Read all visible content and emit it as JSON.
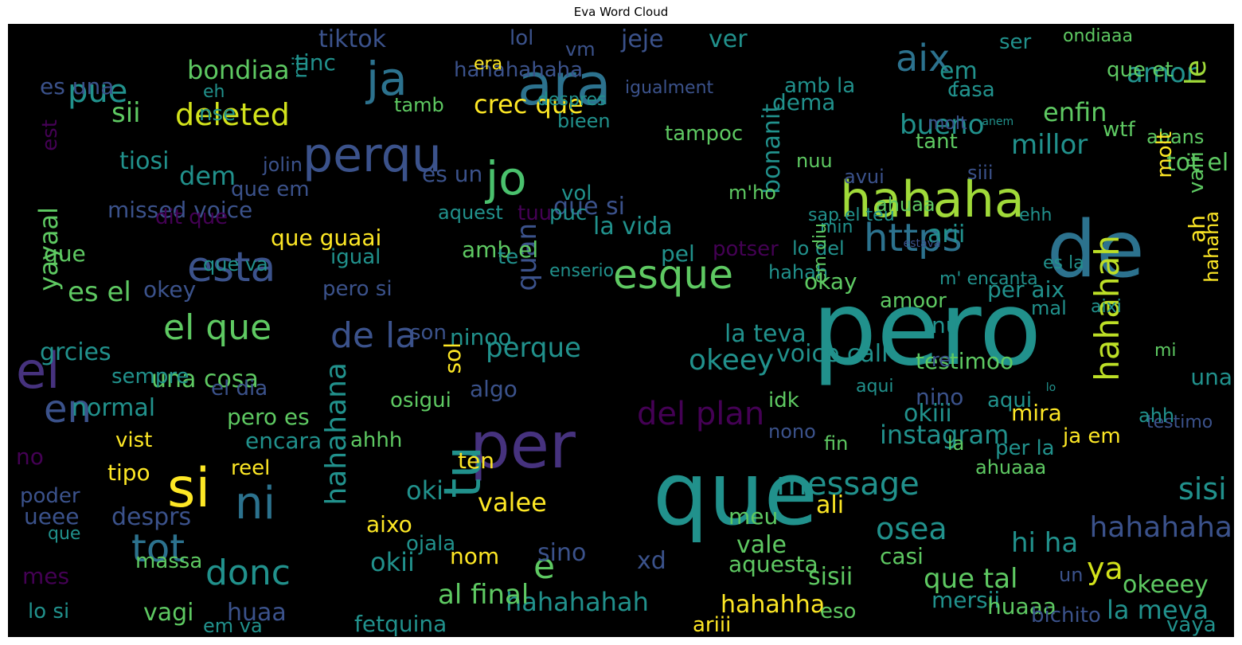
{
  "title": "Eva Word Cloud",
  "colors": {
    "background": "#000000",
    "palette": [
      "#440154",
      "#3b528b",
      "#21918c",
      "#5ec962",
      "#fde725"
    ]
  },
  "words": [
    {
      "text": "pero",
      "color": "#21918c"
    },
    {
      "text": "que",
      "color": "#21918c"
    },
    {
      "text": "de",
      "color": "#2c728e"
    },
    {
      "text": "per",
      "color": "#46327e"
    },
    {
      "text": "ara",
      "color": "#2c728e"
    },
    {
      "text": "hahaha",
      "color": "#a0da39"
    },
    {
      "text": "perqu",
      "color": "#3b528b"
    },
    {
      "text": "ja",
      "color": "#2c728e"
    },
    {
      "text": "jo",
      "color": "#4ac16d"
    },
    {
      "text": "tu",
      "color": "#21918c"
    },
    {
      "text": "si",
      "color": "#fde725"
    },
    {
      "text": "el",
      "color": "#46327e"
    },
    {
      "text": "esque",
      "color": "#5ec962"
    },
    {
      "text": "https",
      "color": "#2c728e"
    },
    {
      "text": "esta",
      "color": "#3b528b"
    },
    {
      "text": "aix",
      "color": "#2c728e"
    },
    {
      "text": "el que",
      "color": "#5ec962"
    },
    {
      "text": "de la",
      "color": "#3b528b"
    },
    {
      "text": "hahahana",
      "color": "#21918c"
    },
    {
      "text": "hahahah",
      "color": "#bddf26"
    },
    {
      "text": "deleted",
      "color": "#d2e21b"
    },
    {
      "text": "message",
      "color": "#21918c"
    },
    {
      "text": "tot",
      "color": "#2c728e"
    },
    {
      "text": "ni",
      "color": "#2c728e"
    },
    {
      "text": "donc",
      "color": "#21918c"
    },
    {
      "text": "en",
      "color": "#3b528b"
    },
    {
      "text": "del plan",
      "color": "#440154"
    },
    {
      "text": "instagram",
      "color": "#21918c"
    },
    {
      "text": "voice call",
      "color": "#21918c"
    },
    {
      "text": "okeey",
      "color": "#21918c"
    },
    {
      "text": "perque",
      "color": "#21918c"
    },
    {
      "text": "quan",
      "color": "#3b528b"
    },
    {
      "text": "pue",
      "color": "#21918c"
    },
    {
      "text": "crec que",
      "color": "#fde725"
    },
    {
      "text": "bondiaa",
      "color": "#5ec962"
    },
    {
      "text": "tiktok",
      "color": "#3b528b"
    },
    {
      "text": "jeje",
      "color": "#3b528b"
    },
    {
      "text": "ver",
      "color": "#21918c"
    },
    {
      "text": "bueno",
      "color": "#21918c"
    },
    {
      "text": "amor",
      "color": "#21918c"
    },
    {
      "text": "le",
      "color": "#a0da39"
    },
    {
      "text": "enfin",
      "color": "#5ec962"
    },
    {
      "text": "millor",
      "color": "#21918c"
    },
    {
      "text": "bonanit",
      "color": "#21918c"
    },
    {
      "text": "testimoo",
      "color": "#5ec962"
    },
    {
      "text": "osea",
      "color": "#21918c"
    },
    {
      "text": "hahahaha",
      "color": "#3b528b"
    },
    {
      "text": "ya",
      "color": "#d2e21b"
    },
    {
      "text": "sisi",
      "color": "#21918c"
    },
    {
      "text": "una",
      "color": "#21918c"
    },
    {
      "text": "la meva",
      "color": "#21918c"
    },
    {
      "text": "okeeey",
      "color": "#5ec962"
    },
    {
      "text": "que tal",
      "color": "#5ec962"
    },
    {
      "text": "hahahahah",
      "color": "#21918c"
    },
    {
      "text": "aqui",
      "color": "#21918c"
    },
    {
      "text": "arii",
      "color": "#21918c"
    },
    {
      "text": "una cosa",
      "color": "#5ec962"
    },
    {
      "text": "que guaai",
      "color": "#fde725"
    },
    {
      "text": "la vida",
      "color": "#21918c"
    },
    {
      "text": "amb el",
      "color": "#5ec962"
    },
    {
      "text": "valee",
      "color": "#fde725"
    },
    {
      "text": "aixo",
      "color": "#fde725"
    },
    {
      "text": "sisii",
      "color": "#5ec962"
    },
    {
      "text": "vale",
      "color": "#5ec962"
    },
    {
      "text": "la teva",
      "color": "#21918c"
    },
    {
      "text": "missed voice",
      "color": "#3b528b"
    },
    {
      "text": "yayaal",
      "color": "#5ec962"
    },
    {
      "text": "sii",
      "color": "#5ec962"
    },
    {
      "text": "tiosi",
      "color": "#21918c"
    },
    {
      "text": "dem",
      "color": "#21918c"
    },
    {
      "text": "es el",
      "color": "#5ec962"
    },
    {
      "text": "desprs",
      "color": "#3b528b"
    },
    {
      "text": "massa",
      "color": "#5ec962"
    },
    {
      "text": "vagi",
      "color": "#5ec962"
    },
    {
      "text": "huaa",
      "color": "#3b528b"
    },
    {
      "text": "em va",
      "color": "#21918c"
    },
    {
      "text": "fetquina",
      "color": "#21918c"
    },
    {
      "text": "al final",
      "color": "#5ec962"
    },
    {
      "text": "e",
      "color": "#5ec962"
    },
    {
      "text": "aqui",
      "color": "#21918c"
    },
    {
      "text": "ojala",
      "color": "#21918c"
    },
    {
      "text": "okii",
      "color": "#21918c"
    },
    {
      "text": "nom",
      "color": "#fde725"
    },
    {
      "text": "xd",
      "color": "#3b528b"
    },
    {
      "text": "sino",
      "color": "#3b528b"
    },
    {
      "text": "hahahha",
      "color": "#fde725"
    },
    {
      "text": "ariii",
      "color": "#fde725"
    },
    {
      "text": "aquesta",
      "color": "#5ec962"
    },
    {
      "text": "casi",
      "color": "#5ec962"
    },
    {
      "text": "eso",
      "color": "#5ec962"
    },
    {
      "text": "mersii",
      "color": "#21918c"
    },
    {
      "text": "huaaa",
      "color": "#5ec962"
    },
    {
      "text": "hi ha",
      "color": "#21918c"
    },
    {
      "text": "un",
      "color": "#3b528b"
    },
    {
      "text": "vaya",
      "color": "#21918c"
    },
    {
      "text": "bichito",
      "color": "#3b528b"
    },
    {
      "text": "meu",
      "color": "#5ec962"
    },
    {
      "text": "ali",
      "color": "#fde725"
    },
    {
      "text": "oki",
      "color": "#21918c"
    },
    {
      "text": "ten",
      "color": "#fde725"
    },
    {
      "text": "ahhh",
      "color": "#5ec962"
    },
    {
      "text": "pero es",
      "color": "#5ec962"
    },
    {
      "text": "encara",
      "color": "#21918c"
    },
    {
      "text": "reel",
      "color": "#fde725"
    },
    {
      "text": "vist",
      "color": "#fde725"
    },
    {
      "text": "tipo",
      "color": "#fde725"
    },
    {
      "text": "normal",
      "color": "#21918c"
    },
    {
      "text": "sempre",
      "color": "#21918c"
    },
    {
      "text": "el dia",
      "color": "#3b528b"
    },
    {
      "text": "grcies",
      "color": "#21918c"
    },
    {
      "text": "okey",
      "color": "#3b528b"
    },
    {
      "text": "pero si",
      "color": "#3b528b"
    },
    {
      "text": "son",
      "color": "#3b528b"
    },
    {
      "text": "ninoo",
      "color": "#21918c"
    },
    {
      "text": "sol",
      "color": "#fde725"
    },
    {
      "text": "osigui",
      "color": "#5ec962"
    },
    {
      "text": "algo",
      "color": "#3b528b"
    },
    {
      "text": "igual",
      "color": "#21918c"
    },
    {
      "text": "te",
      "color": "#21918c"
    },
    {
      "text": "enserio",
      "color": "#21918c"
    },
    {
      "text": "pel",
      "color": "#21918c"
    },
    {
      "text": "potser",
      "color": "#440154"
    },
    {
      "text": "hahah",
      "color": "#21918c"
    },
    {
      "text": "okay",
      "color": "#5ec962"
    },
    {
      "text": "amoor",
      "color": "#5ec962"
    },
    {
      "text": "nu",
      "color": "#21918c"
    },
    {
      "text": "re",
      "color": "#3b528b"
    },
    {
      "text": "nono",
      "color": "#3b528b"
    },
    {
      "text": "okiii",
      "color": "#21918c"
    },
    {
      "text": "idk",
      "color": "#5ec962"
    },
    {
      "text": "nino",
      "color": "#3b528b"
    },
    {
      "text": "mira",
      "color": "#fde725"
    },
    {
      "text": "per la",
      "color": "#21918c"
    },
    {
      "text": "la",
      "color": "#5ec962"
    },
    {
      "text": "fin",
      "color": "#5ec962"
    },
    {
      "text": "testimo",
      "color": "#3b528b"
    },
    {
      "text": "ahh",
      "color": "#21918c"
    },
    {
      "text": "mi",
      "color": "#5ec962"
    },
    {
      "text": "es la",
      "color": "#21918c"
    },
    {
      "text": "mal",
      "color": "#21918c"
    },
    {
      "text": "aixi",
      "color": "#21918c"
    },
    {
      "text": "per aix",
      "color": "#21918c"
    },
    {
      "text": "m' encanta",
      "color": "#21918c"
    },
    {
      "text": "ehh",
      "color": "#21918c"
    },
    {
      "text": "siii",
      "color": "#3b528b"
    },
    {
      "text": "tant",
      "color": "#5ec962"
    },
    {
      "text": "wtf",
      "color": "#5ec962"
    },
    {
      "text": "abans",
      "color": "#5ec962"
    },
    {
      "text": "tot el",
      "color": "#5ec962"
    },
    {
      "text": "casa",
      "color": "#21918c"
    },
    {
      "text": "em",
      "color": "#21918c"
    },
    {
      "text": "fa",
      "color": "#21918c"
    },
    {
      "text": "ser",
      "color": "#21918c"
    },
    {
      "text": "ondiaaa",
      "color": "#5ec962"
    },
    {
      "text": "que et",
      "color": "#5ec962"
    },
    {
      "text": "igualment",
      "color": "#3b528b"
    },
    {
      "text": "hahahahaha",
      "color": "#3b528b"
    },
    {
      "text": "bieen",
      "color": "#21918c"
    },
    {
      "text": "tamb",
      "color": "#5ec962"
    },
    {
      "text": "tampoc",
      "color": "#5ec962"
    },
    {
      "text": "tinc",
      "color": "#21918c"
    },
    {
      "text": "lol",
      "color": "#3b528b"
    },
    {
      "text": "vm",
      "color": "#3b528b"
    },
    {
      "text": "era",
      "color": "#fde725"
    },
    {
      "text": "es una",
      "color": "#3b528b"
    },
    {
      "text": "nse",
      "color": "#21918c"
    },
    {
      "text": "eh",
      "color": "#21918c"
    },
    {
      "text": "nii",
      "color": "#21918c"
    },
    {
      "text": "despres",
      "color": "#21918c"
    },
    {
      "text": "no",
      "color": "#440154"
    },
    {
      "text": "poder",
      "color": "#3b528b"
    },
    {
      "text": "mes",
      "color": "#440154"
    },
    {
      "text": "lo si",
      "color": "#21918c"
    },
    {
      "text": "que",
      "color": "#21918c"
    },
    {
      "text": "ueee",
      "color": "#3b528b"
    },
    {
      "text": "dit que",
      "color": "#440154"
    },
    {
      "text": "que",
      "color": "#5ec962"
    },
    {
      "text": "es un",
      "color": "#3b528b"
    },
    {
      "text": "que em",
      "color": "#3b528b"
    },
    {
      "text": "jolin",
      "color": "#3b528b"
    },
    {
      "text": "aquest",
      "color": "#21918c"
    },
    {
      "text": "que va",
      "color": "#21918c"
    },
    {
      "text": "vol",
      "color": "#21918c"
    },
    {
      "text": "que si",
      "color": "#3b528b"
    },
    {
      "text": "tuu",
      "color": "#440154"
    },
    {
      "text": "nuu",
      "color": "#5ec962"
    },
    {
      "text": "avui",
      "color": "#3b528b"
    },
    {
      "text": "sap el teu",
      "color": "#21918c"
    },
    {
      "text": "ahuaa",
      "color": "#5ec962"
    },
    {
      "text": "lo del",
      "color": "#21918c"
    },
    {
      "text": "min",
      "color": "#21918c"
    },
    {
      "text": "puc",
      "color": "#21918c"
    },
    {
      "text": "m'ho",
      "color": "#5ec962"
    },
    {
      "text": "ahuaaa",
      "color": "#5ec962"
    },
    {
      "text": "ja em",
      "color": "#fde725"
    },
    {
      "text": "em diu",
      "color": "#5ec962"
    },
    {
      "text": "hahaha",
      "color": "#fde725"
    },
    {
      "text": "molt",
      "color": "#fde725"
    },
    {
      "text": "ah",
      "color": "#fde725"
    },
    {
      "text": "valii",
      "color": "#5ec962"
    },
    {
      "text": "dema",
      "color": "#21918c"
    },
    {
      "text": "amb la",
      "color": "#21918c"
    },
    {
      "text": "molt",
      "color": "#3b528b"
    },
    {
      "text": "est",
      "color": "#440154"
    },
    {
      "text": "lo",
      "color": "#21918c"
    },
    {
      "text": "anem",
      "color": "#21918c"
    },
    {
      "text": "estava",
      "color": "#3b528b"
    }
  ]
}
